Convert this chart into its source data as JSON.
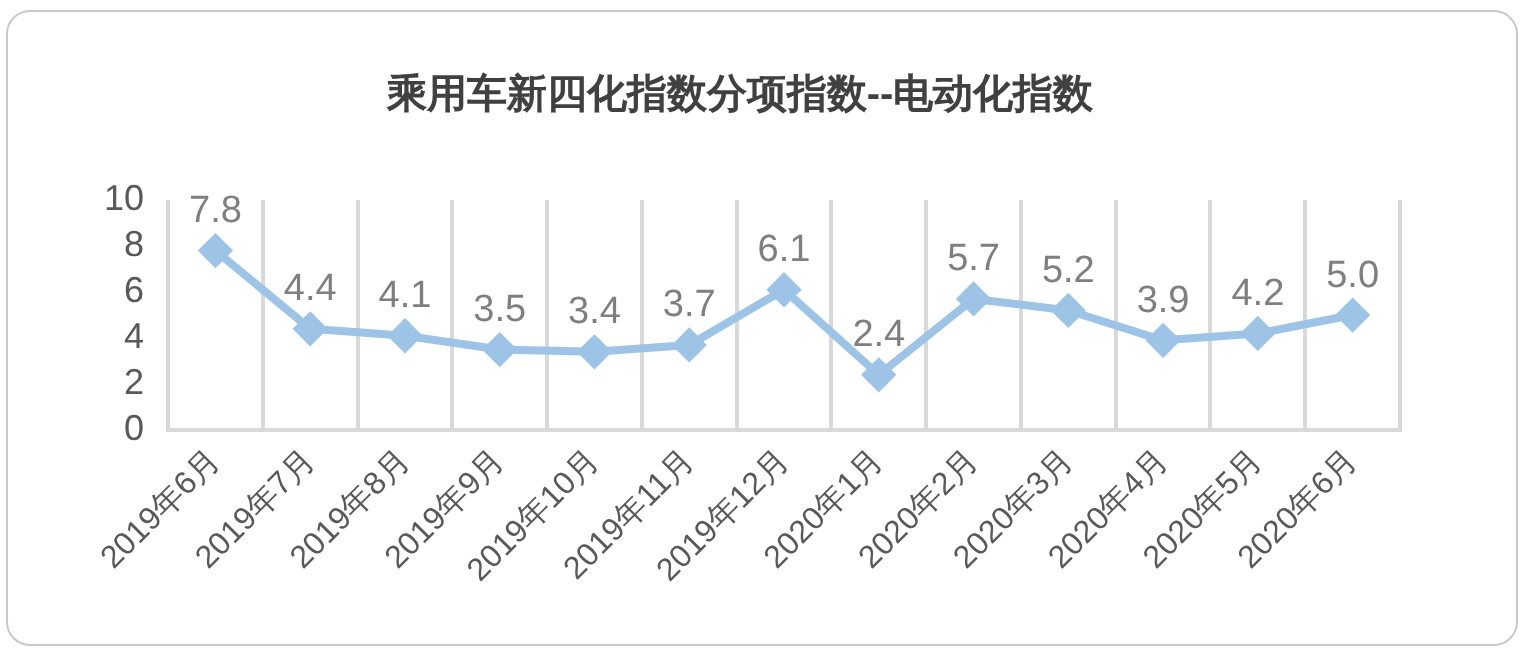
{
  "chart_data": {
    "type": "line",
    "title": "乘用车新四化指数分项指数--电动化指数",
    "categories": [
      "2019年6月",
      "2019年7月",
      "2019年8月",
      "2019年9月",
      "2019年10月",
      "2019年11月",
      "2019年12月",
      "2020年1月",
      "2020年2月",
      "2020年3月",
      "2020年4月",
      "2020年5月",
      "2020年6月"
    ],
    "values": [
      7.8,
      4.4,
      4.1,
      3.5,
      3.4,
      3.7,
      6.1,
      2.4,
      5.7,
      5.2,
      3.9,
      4.2,
      5.0
    ],
    "value_labels": [
      "7.8",
      "4.4",
      "4.1",
      "3.5",
      "3.4",
      "3.7",
      "6.1",
      "2.4",
      "5.7",
      "5.2",
      "3.9",
      "4.2",
      "5.0"
    ],
    "color": "#9dc3e6",
    "ylim": [
      0,
      10
    ],
    "yticks": [
      0,
      2,
      4,
      6,
      8,
      10
    ],
    "grid": "x",
    "marker": "diamond",
    "line_style": "solid",
    "legend": false
  }
}
